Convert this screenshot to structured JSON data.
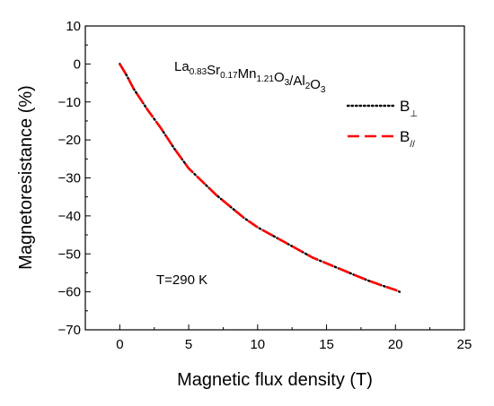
{
  "chart_data": {
    "type": "line",
    "xlabel": "Magnetic flux density (T)",
    "ylabel": "Magnetoresistance (%)",
    "xlim": [
      -2.5,
      25
    ],
    "ylim": [
      -70,
      10
    ],
    "xticks": [
      "0",
      "5",
      "10",
      "15",
      "20",
      "25"
    ],
    "yticks": [
      "10",
      "0",
      "−10",
      "−20",
      "−30",
      "−40",
      "−50",
      "−60",
      "−70"
    ],
    "grid": false,
    "legend_position": "top-right",
    "sample_label": {
      "parts": [
        {
          "text": "La",
          "sub": "0.83"
        },
        {
          "text": "Sr",
          "sub": "0.17"
        },
        {
          "text": "Mn",
          "sub": "1.21"
        },
        {
          "text": "O",
          "sub": "3"
        },
        {
          "text": "/Al",
          "sub": "2"
        },
        {
          "text": "O",
          "sub": "3"
        }
      ]
    },
    "temperature_label": "T=290 K",
    "series": [
      {
        "name": "B⊥",
        "legend_main": "B",
        "legend_sub": "⊥",
        "color": "#000000",
        "style": "dotted",
        "x": [
          0,
          0.5,
          1,
          2,
          3,
          4,
          5,
          6,
          7,
          8,
          9,
          10,
          11,
          12,
          13,
          14,
          15,
          16,
          17,
          18,
          19,
          20,
          20.3
        ],
        "y": [
          0,
          -3,
          -6.5,
          -12,
          -17,
          -22.5,
          -27.5,
          -31,
          -34.5,
          -37.5,
          -40.5,
          -43,
          -45,
          -47,
          -49,
          -51,
          -52.5,
          -54,
          -55.5,
          -57,
          -58.3,
          -59.5,
          -60
        ]
      },
      {
        "name": "B//",
        "legend_main": "B",
        "legend_sub": "//",
        "color": "#ff0000",
        "style": "dashed",
        "x": [
          0,
          0.5,
          1,
          2,
          3,
          4,
          5,
          6,
          7,
          8,
          9,
          10,
          11,
          12,
          13,
          14,
          15,
          16,
          17,
          18,
          19,
          20,
          20.3
        ],
        "y": [
          0,
          -3,
          -6.5,
          -12,
          -17,
          -22.5,
          -27.5,
          -31,
          -34.5,
          -37.5,
          -40.5,
          -43,
          -45,
          -47,
          -49,
          -51,
          -52.5,
          -54,
          -55.5,
          -57,
          -58.3,
          -59.5,
          -60
        ]
      }
    ]
  }
}
